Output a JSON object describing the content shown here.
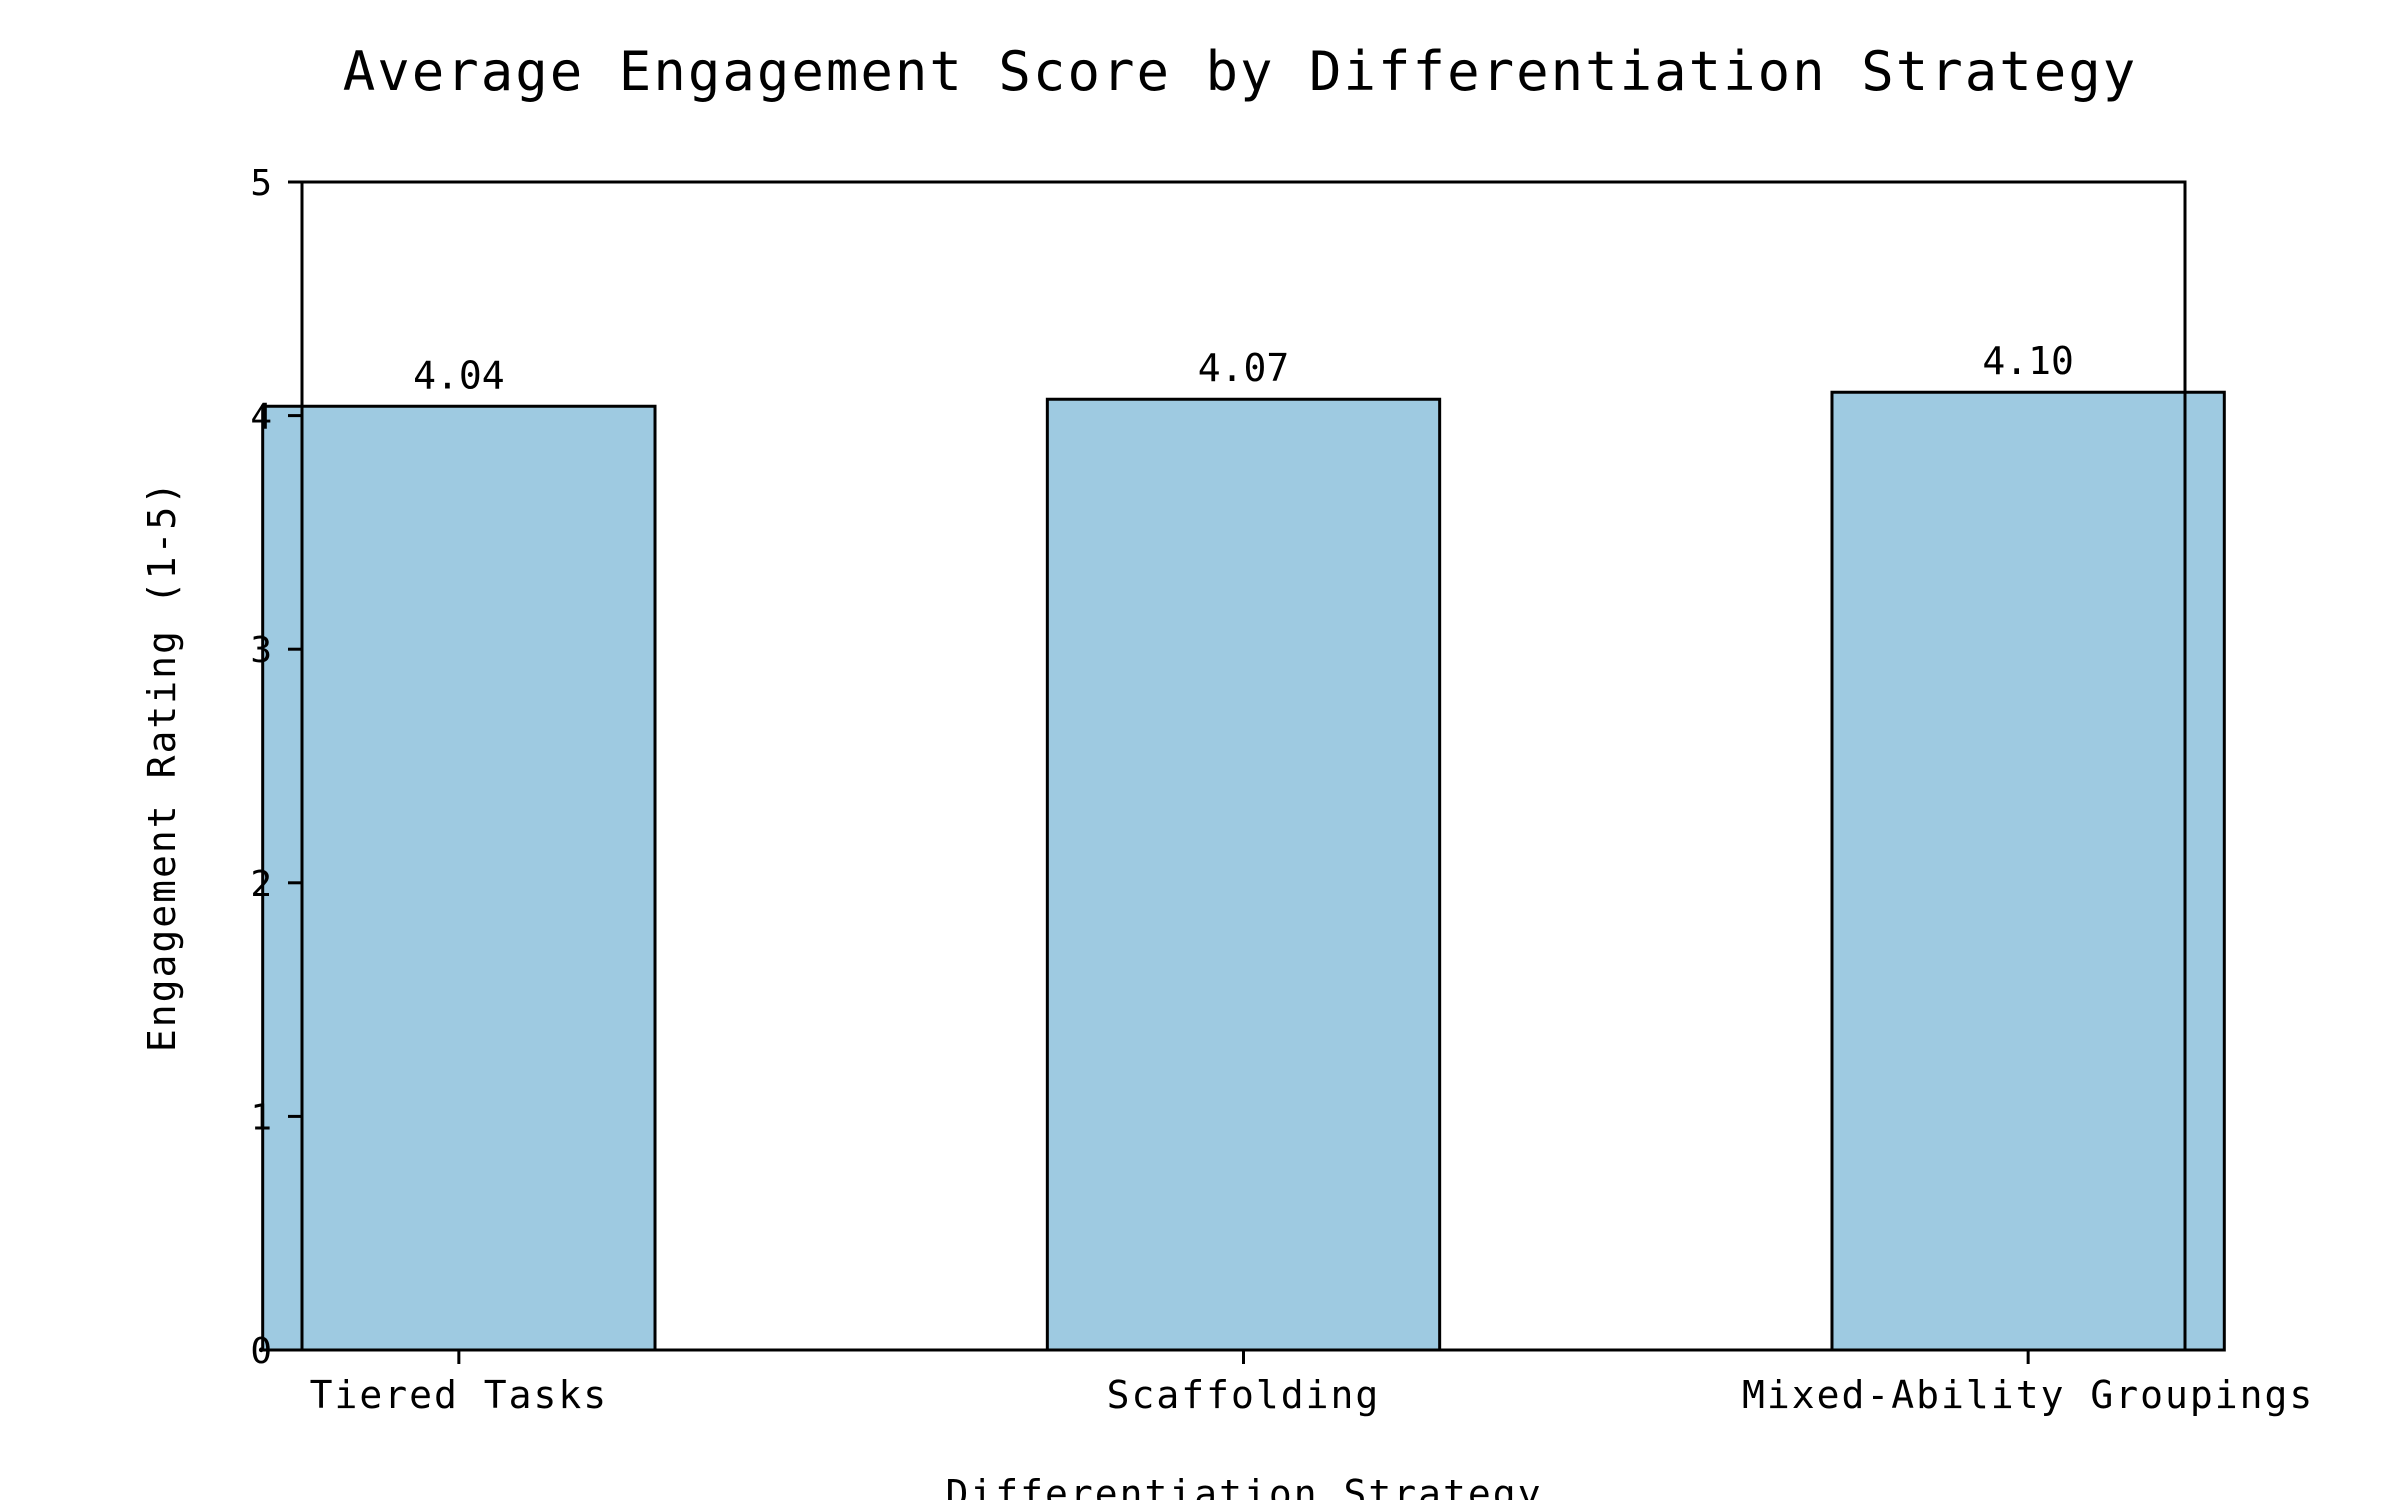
{
  "chart_data": {
    "type": "bar",
    "title": "Average Engagement Score by Differentiation Strategy",
    "xlabel": "Differentiation Strategy",
    "ylabel": "Engagement Rating (1-5)",
    "categories": [
      "Tiered Tasks",
      "Scaffolding",
      "Mixed-Ability Groupings"
    ],
    "values": [
      4.04,
      4.07,
      4.1
    ],
    "value_labels": [
      "4.04",
      "4.07",
      "4.10"
    ],
    "ylim": [
      0,
      5
    ],
    "yticks": [
      0,
      1,
      2,
      3,
      4,
      5
    ],
    "grid": false,
    "legend": "none",
    "bar_color": "#9ecae1",
    "bar_edge_color": "#000000"
  }
}
